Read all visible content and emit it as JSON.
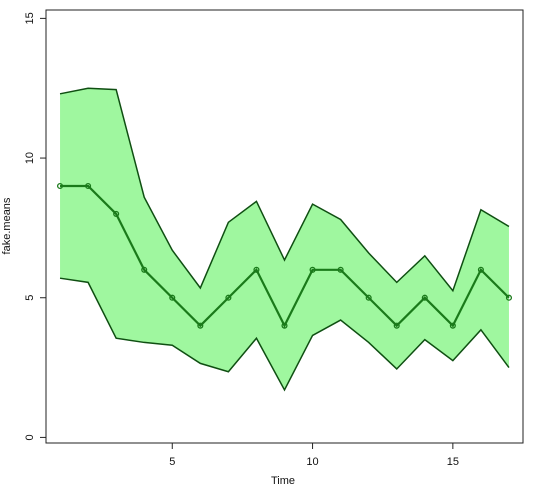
{
  "chart_data": {
    "type": "area",
    "xlabel": "Time",
    "ylabel": "fake.means",
    "xlim": [
      0.5,
      17.5
    ],
    "ylim": [
      -0.2,
      15.3
    ],
    "x": [
      1,
      2,
      3,
      4,
      5,
      6,
      7,
      8,
      9,
      10,
      11,
      12,
      13,
      14,
      15,
      16,
      17
    ],
    "x_ticks": [
      5,
      10,
      15
    ],
    "y_ticks": [
      0,
      5,
      10,
      15
    ],
    "grid": false,
    "series": [
      {
        "role": "upper",
        "values": [
          12.3,
          12.5,
          12.45,
          8.6,
          6.7,
          5.35,
          7.7,
          8.45,
          6.35,
          8.35,
          7.8,
          6.6,
          5.55,
          6.5,
          5.25,
          8.15,
          7.55
        ]
      },
      {
        "role": "mean",
        "values": [
          9,
          9,
          8,
          6,
          5,
          4,
          5,
          6,
          4,
          6,
          6,
          5,
          4,
          5,
          4,
          6,
          5
        ]
      },
      {
        "role": "lower",
        "values": [
          5.7,
          5.55,
          3.55,
          3.4,
          3.3,
          2.65,
          2.35,
          3.55,
          1.7,
          3.65,
          4.2,
          3.4,
          2.45,
          3.5,
          2.75,
          3.85,
          2.5
        ]
      }
    ],
    "colors": {
      "band_fill": "#9ff79f",
      "band_edge": "#0f4f12",
      "mean_line": "#1a7a1a",
      "axis": "#222222"
    }
  }
}
